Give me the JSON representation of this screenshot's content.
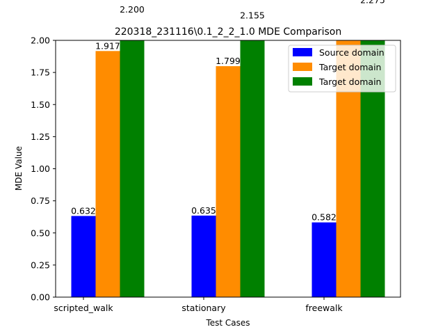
{
  "chart_data": {
    "type": "bar",
    "title": "220318_231116\\0.1_2_2_1.0 MDE Comparison",
    "xlabel": "Test Cases",
    "ylabel": "MDE Value",
    "categories": [
      "scripted_walk",
      "stationary",
      "freewalk"
    ],
    "ylim": [
      0,
      2.0
    ],
    "yticks": [
      "0.00",
      "0.25",
      "0.50",
      "0.75",
      "1.00",
      "1.25",
      "1.50",
      "1.75",
      "2.00"
    ],
    "ytick_values": [
      0,
      0.25,
      0.5,
      0.75,
      1.0,
      1.25,
      1.5,
      1.75,
      2.0
    ],
    "grid": false,
    "legend_position": "top-right",
    "series": [
      {
        "name": "Source domain",
        "color": "#0000ff",
        "values": [
          0.632,
          0.635,
          0.582
        ],
        "labels": [
          "0.632",
          "0.635",
          "0.582"
        ]
      },
      {
        "name": "Target domain",
        "color": "#ff8c00",
        "values": [
          1.917,
          1.799,
          2.05
        ],
        "labels": [
          "1.917",
          "1.799",
          ""
        ]
      },
      {
        "name": "Target domain",
        "color": "#008000",
        "values": [
          2.2,
          2.155,
          2.275
        ],
        "labels": [
          "2.200",
          "2.155",
          "2.275"
        ]
      }
    ]
  }
}
